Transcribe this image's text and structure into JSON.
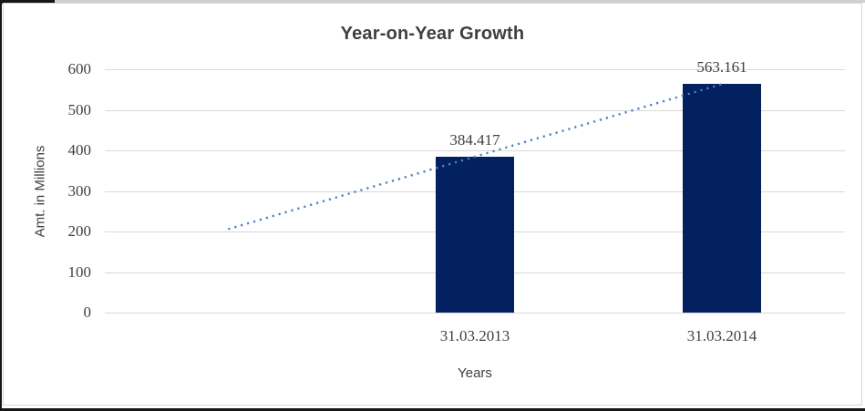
{
  "chart_data": {
    "type": "bar",
    "title": "Year-on-Year Growth",
    "xlabel": "Years",
    "ylabel": "Amt. in Millions",
    "categories": [
      "31.03.2013",
      "31.03.2014"
    ],
    "values": [
      384.417,
      563.161
    ],
    "data_labels": [
      "384.417",
      "563.161"
    ],
    "ylim": [
      0,
      600
    ],
    "yticks": [
      0,
      100,
      200,
      300,
      400,
      500,
      600
    ],
    "grid": "horizontal",
    "legend": "none",
    "bar_color": "#02215e",
    "gridline_color": "#d9d9d9",
    "text_color": "#404040",
    "category_slots": 3,
    "bar_slots": [
      1,
      2
    ],
    "trendline": {
      "type": "linear",
      "style": "dotted",
      "color": "#4f81bd",
      "from_slot": 0,
      "to_slot": 2,
      "from_value": 205.673,
      "to_value": 563.161
    }
  }
}
